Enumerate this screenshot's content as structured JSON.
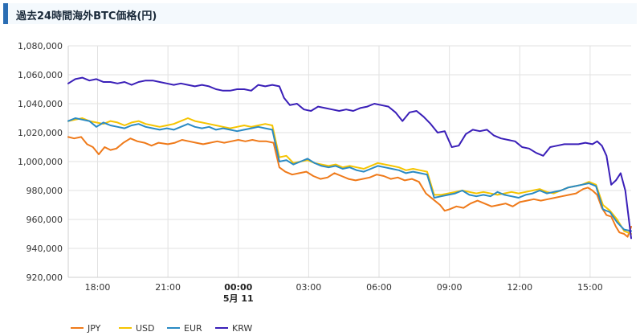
{
  "page": {
    "title": "過去24時間海外BTC価格(円)"
  },
  "chart_data": {
    "type": "line",
    "title": "過去24時間海外BTC価格(円)",
    "ylim": [
      920000,
      1080000
    ],
    "y_ticks": [
      "1,080,000",
      "1,060,000",
      "1,040,000",
      "1,020,000",
      "1,000,000",
      "980,000",
      "960,000",
      "940,000",
      "920,000"
    ],
    "y_tick_values": [
      1080000,
      1060000,
      1040000,
      1020000,
      1000000,
      980000,
      960000,
      940000,
      920000
    ],
    "xlim": [
      16.75,
      40.75
    ],
    "x_ticks": [
      {
        "label": "18:00",
        "value": 18,
        "bold": false,
        "sub": ""
      },
      {
        "label": "21:00",
        "value": 21,
        "bold": false,
        "sub": ""
      },
      {
        "label": "00:00",
        "value": 24,
        "bold": true,
        "sub": "5月 11"
      },
      {
        "label": "03:00",
        "value": 27,
        "bold": false,
        "sub": ""
      },
      {
        "label": "06:00",
        "value": 30,
        "bold": false,
        "sub": ""
      },
      {
        "label": "09:00",
        "value": 33,
        "bold": false,
        "sub": ""
      },
      {
        "label": "12:00",
        "value": 36,
        "bold": false,
        "sub": ""
      },
      {
        "label": "15:00",
        "value": 39,
        "bold": false,
        "sub": ""
      }
    ],
    "grid": true,
    "legend_position": "bottom-left",
    "series": [
      {
        "name": "JPY",
        "color": "#ef7a1a",
        "x": [
          16.75,
          17.0,
          17.3,
          17.55,
          17.8,
          18.05,
          18.3,
          18.55,
          18.8,
          19.1,
          19.4,
          19.7,
          20.0,
          20.3,
          20.6,
          21.0,
          21.3,
          21.6,
          21.9,
          22.2,
          22.5,
          22.8,
          23.1,
          23.4,
          23.7,
          24.0,
          24.3,
          24.6,
          24.9,
          25.2,
          25.5,
          25.75,
          26.0,
          26.3,
          26.6,
          26.9,
          27.2,
          27.5,
          27.8,
          28.1,
          28.4,
          28.7,
          29.0,
          29.3,
          29.6,
          29.9,
          30.2,
          30.5,
          30.8,
          31.1,
          31.4,
          31.7,
          32.0,
          32.3,
          32.6,
          32.8,
          33.0,
          33.3,
          33.6,
          33.9,
          34.2,
          34.5,
          34.8,
          35.1,
          35.4,
          35.7,
          36.0,
          36.3,
          36.6,
          36.9,
          37.2,
          37.5,
          37.8,
          38.1,
          38.4,
          38.7,
          38.9,
          39.1,
          39.3,
          39.5,
          39.7,
          39.9,
          40.1,
          40.25,
          40.45,
          40.6,
          40.75
        ],
        "values": [
          1017000,
          1016000,
          1017000,
          1012000,
          1010000,
          1005000,
          1010000,
          1008000,
          1009000,
          1013000,
          1016000,
          1014000,
          1013000,
          1011000,
          1013000,
          1012000,
          1013000,
          1015000,
          1014000,
          1013000,
          1012000,
          1013000,
          1014000,
          1013000,
          1014000,
          1015000,
          1014000,
          1015000,
          1014000,
          1014000,
          1013000,
          996000,
          993000,
          991000,
          992000,
          993000,
          990000,
          988000,
          989000,
          992000,
          990000,
          988000,
          987000,
          988000,
          989000,
          991000,
          990000,
          988000,
          989000,
          987000,
          988000,
          986000,
          978000,
          974000,
          970000,
          966000,
          967000,
          969000,
          968000,
          971000,
          973000,
          971000,
          969000,
          970000,
          971000,
          969000,
          972000,
          973000,
          974000,
          973000,
          974000,
          975000,
          976000,
          977000,
          978000,
          981000,
          982000,
          980000,
          977000,
          968000,
          963000,
          962000,
          955000,
          951000,
          950000,
          948000,
          955000
        ]
      },
      {
        "name": "USD",
        "color": "#f5c400",
        "x": [
          16.75,
          17.05,
          17.35,
          17.65,
          17.95,
          18.25,
          18.55,
          18.85,
          19.15,
          19.45,
          19.75,
          20.05,
          20.35,
          20.65,
          20.95,
          21.25,
          21.55,
          21.85,
          22.15,
          22.45,
          22.75,
          23.05,
          23.35,
          23.65,
          23.95,
          24.25,
          24.55,
          24.85,
          25.15,
          25.45,
          25.75,
          26.05,
          26.35,
          26.65,
          26.95,
          27.25,
          27.55,
          27.85,
          28.15,
          28.45,
          28.75,
          29.05,
          29.35,
          29.65,
          29.95,
          30.25,
          30.55,
          30.85,
          31.15,
          31.45,
          31.75,
          32.05,
          32.35,
          32.65,
          32.95,
          33.25,
          33.55,
          33.85,
          34.15,
          34.45,
          34.75,
          35.05,
          35.35,
          35.65,
          35.95,
          36.25,
          36.55,
          36.85,
          37.15,
          37.45,
          37.75,
          38.05,
          38.35,
          38.65,
          38.95,
          39.25,
          39.55,
          39.85,
          40.15,
          40.45,
          40.75
        ],
        "values": [
          1028000,
          1029000,
          1030000,
          1028000,
          1027000,
          1026000,
          1028000,
          1027000,
          1025000,
          1027000,
          1028000,
          1026000,
          1025000,
          1024000,
          1025000,
          1026000,
          1028000,
          1030000,
          1028000,
          1027000,
          1026000,
          1025000,
          1024000,
          1023000,
          1024000,
          1025000,
          1024000,
          1025000,
          1026000,
          1025000,
          1003000,
          1004000,
          999000,
          1000000,
          1001000,
          999000,
          998000,
          997000,
          998000,
          996000,
          997000,
          996000,
          995000,
          997000,
          999000,
          998000,
          997000,
          996000,
          994000,
          995000,
          994000,
          993000,
          977000,
          977000,
          978000,
          979000,
          980000,
          979000,
          978000,
          979000,
          978000,
          977000,
          978000,
          979000,
          978000,
          979000,
          980000,
          981000,
          979000,
          978000,
          980000,
          982000,
          983000,
          984000,
          986000,
          984000,
          970000,
          966000,
          960000,
          952000,
          950000
        ]
      },
      {
        "name": "EUR",
        "color": "#2a8ac4",
        "x": [
          16.75,
          17.05,
          17.35,
          17.65,
          17.95,
          18.25,
          18.55,
          18.85,
          19.15,
          19.45,
          19.75,
          20.05,
          20.35,
          20.65,
          20.95,
          21.25,
          21.55,
          21.85,
          22.15,
          22.45,
          22.75,
          23.05,
          23.35,
          23.65,
          23.95,
          24.25,
          24.55,
          24.85,
          25.15,
          25.45,
          25.75,
          26.05,
          26.35,
          26.65,
          26.95,
          27.25,
          27.55,
          27.85,
          28.15,
          28.45,
          28.75,
          29.05,
          29.35,
          29.65,
          29.95,
          30.25,
          30.55,
          30.85,
          31.15,
          31.45,
          31.75,
          32.05,
          32.35,
          32.65,
          32.95,
          33.25,
          33.55,
          33.85,
          34.15,
          34.45,
          34.75,
          35.05,
          35.35,
          35.65,
          35.95,
          36.25,
          36.55,
          36.85,
          37.15,
          37.45,
          37.75,
          38.05,
          38.35,
          38.65,
          38.95,
          39.25,
          39.55,
          39.85,
          40.15,
          40.45,
          40.75
        ],
        "values": [
          1028000,
          1030000,
          1029000,
          1028000,
          1024000,
          1027000,
          1025000,
          1024000,
          1023000,
          1025000,
          1026000,
          1024000,
          1023000,
          1022000,
          1023000,
          1022000,
          1024000,
          1026000,
          1024000,
          1023000,
          1024000,
          1022000,
          1023000,
          1022000,
          1021000,
          1022000,
          1023000,
          1024000,
          1023000,
          1022000,
          1000000,
          1001000,
          998000,
          1000000,
          1002000,
          999000,
          997000,
          996000,
          997000,
          995000,
          996000,
          994000,
          993000,
          995000,
          997000,
          996000,
          995000,
          994000,
          992000,
          993000,
          992000,
          991000,
          975000,
          976000,
          977000,
          978000,
          980000,
          977000,
          976000,
          977000,
          976000,
          979000,
          977000,
          976000,
          975000,
          977000,
          978000,
          980000,
          978000,
          979000,
          980000,
          982000,
          983000,
          984000,
          985000,
          983000,
          967000,
          965000,
          958000,
          953000,
          952000
        ]
      },
      {
        "name": "KRW",
        "color": "#3a1fb8",
        "x": [
          16.75,
          17.05,
          17.35,
          17.65,
          17.95,
          18.25,
          18.55,
          18.85,
          19.15,
          19.45,
          19.75,
          20.05,
          20.35,
          20.65,
          20.95,
          21.25,
          21.55,
          21.85,
          22.15,
          22.45,
          22.75,
          23.05,
          23.35,
          23.65,
          23.95,
          24.25,
          24.55,
          24.85,
          25.15,
          25.45,
          25.75,
          25.95,
          26.2,
          26.5,
          26.8,
          27.1,
          27.4,
          27.7,
          28.0,
          28.3,
          28.6,
          28.9,
          29.2,
          29.5,
          29.8,
          30.1,
          30.4,
          30.7,
          31.0,
          31.3,
          31.6,
          31.9,
          32.2,
          32.5,
          32.8,
          33.1,
          33.4,
          33.7,
          34.0,
          34.3,
          34.6,
          34.9,
          35.2,
          35.5,
          35.8,
          36.1,
          36.4,
          36.7,
          37.0,
          37.3,
          37.6,
          37.9,
          38.2,
          38.5,
          38.8,
          39.1,
          39.3,
          39.5,
          39.7,
          39.9,
          40.1,
          40.3,
          40.5,
          40.75
        ],
        "values": [
          1054000,
          1057000,
          1058000,
          1056000,
          1057000,
          1055000,
          1055000,
          1054000,
          1055000,
          1053000,
          1055000,
          1056000,
          1056000,
          1055000,
          1054000,
          1053000,
          1054000,
          1053000,
          1052000,
          1053000,
          1052000,
          1050000,
          1049000,
          1049000,
          1050000,
          1050000,
          1049000,
          1053000,
          1052000,
          1053000,
          1052000,
          1044000,
          1039000,
          1040000,
          1036000,
          1035000,
          1038000,
          1037000,
          1036000,
          1035000,
          1036000,
          1035000,
          1037000,
          1038000,
          1040000,
          1039000,
          1038000,
          1034000,
          1028000,
          1034000,
          1035000,
          1031000,
          1026000,
          1020000,
          1021000,
          1010000,
          1011000,
          1019000,
          1022000,
          1021000,
          1022000,
          1018000,
          1016000,
          1015000,
          1014000,
          1010000,
          1009000,
          1006000,
          1004000,
          1010000,
          1011000,
          1012000,
          1012000,
          1012000,
          1013000,
          1012000,
          1014000,
          1011000,
          1004000,
          984000,
          987000,
          992000,
          980000,
          947000
        ]
      }
    ]
  }
}
